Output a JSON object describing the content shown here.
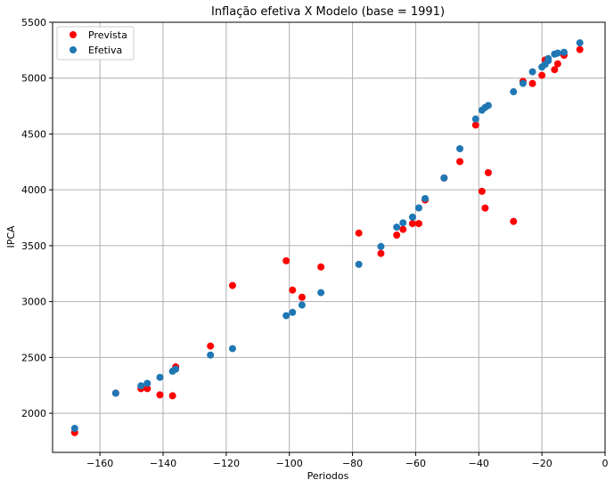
{
  "chart_data": {
    "type": "scatter",
    "title": "Inflação efetiva X Modelo (base = 1991)",
    "xlabel": "Periodos",
    "ylabel": "IPCA",
    "xlim": [
      -175,
      0
    ],
    "ylim": [
      1650,
      5500
    ],
    "xticks": [
      -160,
      -140,
      -120,
      -100,
      -80,
      -60,
      -40,
      -20,
      0
    ],
    "yticks": [
      2000,
      2500,
      3000,
      3500,
      4000,
      4500,
      5000,
      5500
    ],
    "xtick_labels": [
      "−160",
      "−140",
      "−120",
      "−100",
      "−80",
      "−60",
      "−40",
      "−20",
      "0"
    ],
    "ytick_labels": [
      "2000",
      "2500",
      "3000",
      "3500",
      "4000",
      "4500",
      "5000",
      "5500"
    ],
    "grid": true,
    "legend_position": "top-left",
    "series": [
      {
        "name": "Prevista",
        "color": "#ff0000",
        "points": [
          [
            -168,
            1827
          ],
          [
            -155,
            2180
          ],
          [
            -147,
            2221
          ],
          [
            -145,
            2221
          ],
          [
            -141,
            2165
          ],
          [
            -137,
            2157
          ],
          [
            -136,
            2415
          ],
          [
            -125,
            2602
          ],
          [
            -118,
            3144
          ],
          [
            -101,
            3365
          ],
          [
            -99,
            3103
          ],
          [
            -96,
            3039
          ],
          [
            -90,
            3310
          ],
          [
            -78,
            3613
          ],
          [
            -71,
            3431
          ],
          [
            -66,
            3595
          ],
          [
            -64,
            3646
          ],
          [
            -61,
            3698
          ],
          [
            -59,
            3698
          ],
          [
            -57,
            3909
          ],
          [
            -51,
            4106
          ],
          [
            -46,
            4253
          ],
          [
            -41,
            4580
          ],
          [
            -39,
            3987
          ],
          [
            -38,
            3837
          ],
          [
            -37,
            4154
          ],
          [
            -29,
            3717
          ],
          [
            -26,
            4971
          ],
          [
            -23,
            4952
          ],
          [
            -20,
            5025
          ],
          [
            -19,
            5162
          ],
          [
            -16,
            5076
          ],
          [
            -15,
            5128
          ],
          [
            -13,
            5205
          ],
          [
            -8,
            5256
          ]
        ]
      },
      {
        "name": "Efetiva",
        "color": "#1f77b4",
        "points": [
          [
            -168,
            1865
          ],
          [
            -155,
            2180
          ],
          [
            -147,
            2246
          ],
          [
            -145,
            2268
          ],
          [
            -141,
            2322
          ],
          [
            -137,
            2376
          ],
          [
            -136,
            2395
          ],
          [
            -125,
            2521
          ],
          [
            -118,
            2579
          ],
          [
            -101,
            2874
          ],
          [
            -99,
            2903
          ],
          [
            -96,
            2969
          ],
          [
            -90,
            3080
          ],
          [
            -78,
            3333
          ],
          [
            -71,
            3493
          ],
          [
            -66,
            3666
          ],
          [
            -64,
            3705
          ],
          [
            -61,
            3756
          ],
          [
            -59,
            3838
          ],
          [
            -57,
            3922
          ],
          [
            -51,
            4106
          ],
          [
            -46,
            4368
          ],
          [
            -41,
            4634
          ],
          [
            -39,
            4713
          ],
          [
            -38,
            4737
          ],
          [
            -37,
            4755
          ],
          [
            -29,
            4878
          ],
          [
            -26,
            4953
          ],
          [
            -23,
            5057
          ],
          [
            -20,
            5099
          ],
          [
            -19,
            5123
          ],
          [
            -18,
            5156
          ],
          [
            -18,
            5175
          ],
          [
            -16,
            5215
          ],
          [
            -15,
            5224
          ],
          [
            -13,
            5231
          ],
          [
            -8,
            5316
          ]
        ]
      }
    ]
  }
}
